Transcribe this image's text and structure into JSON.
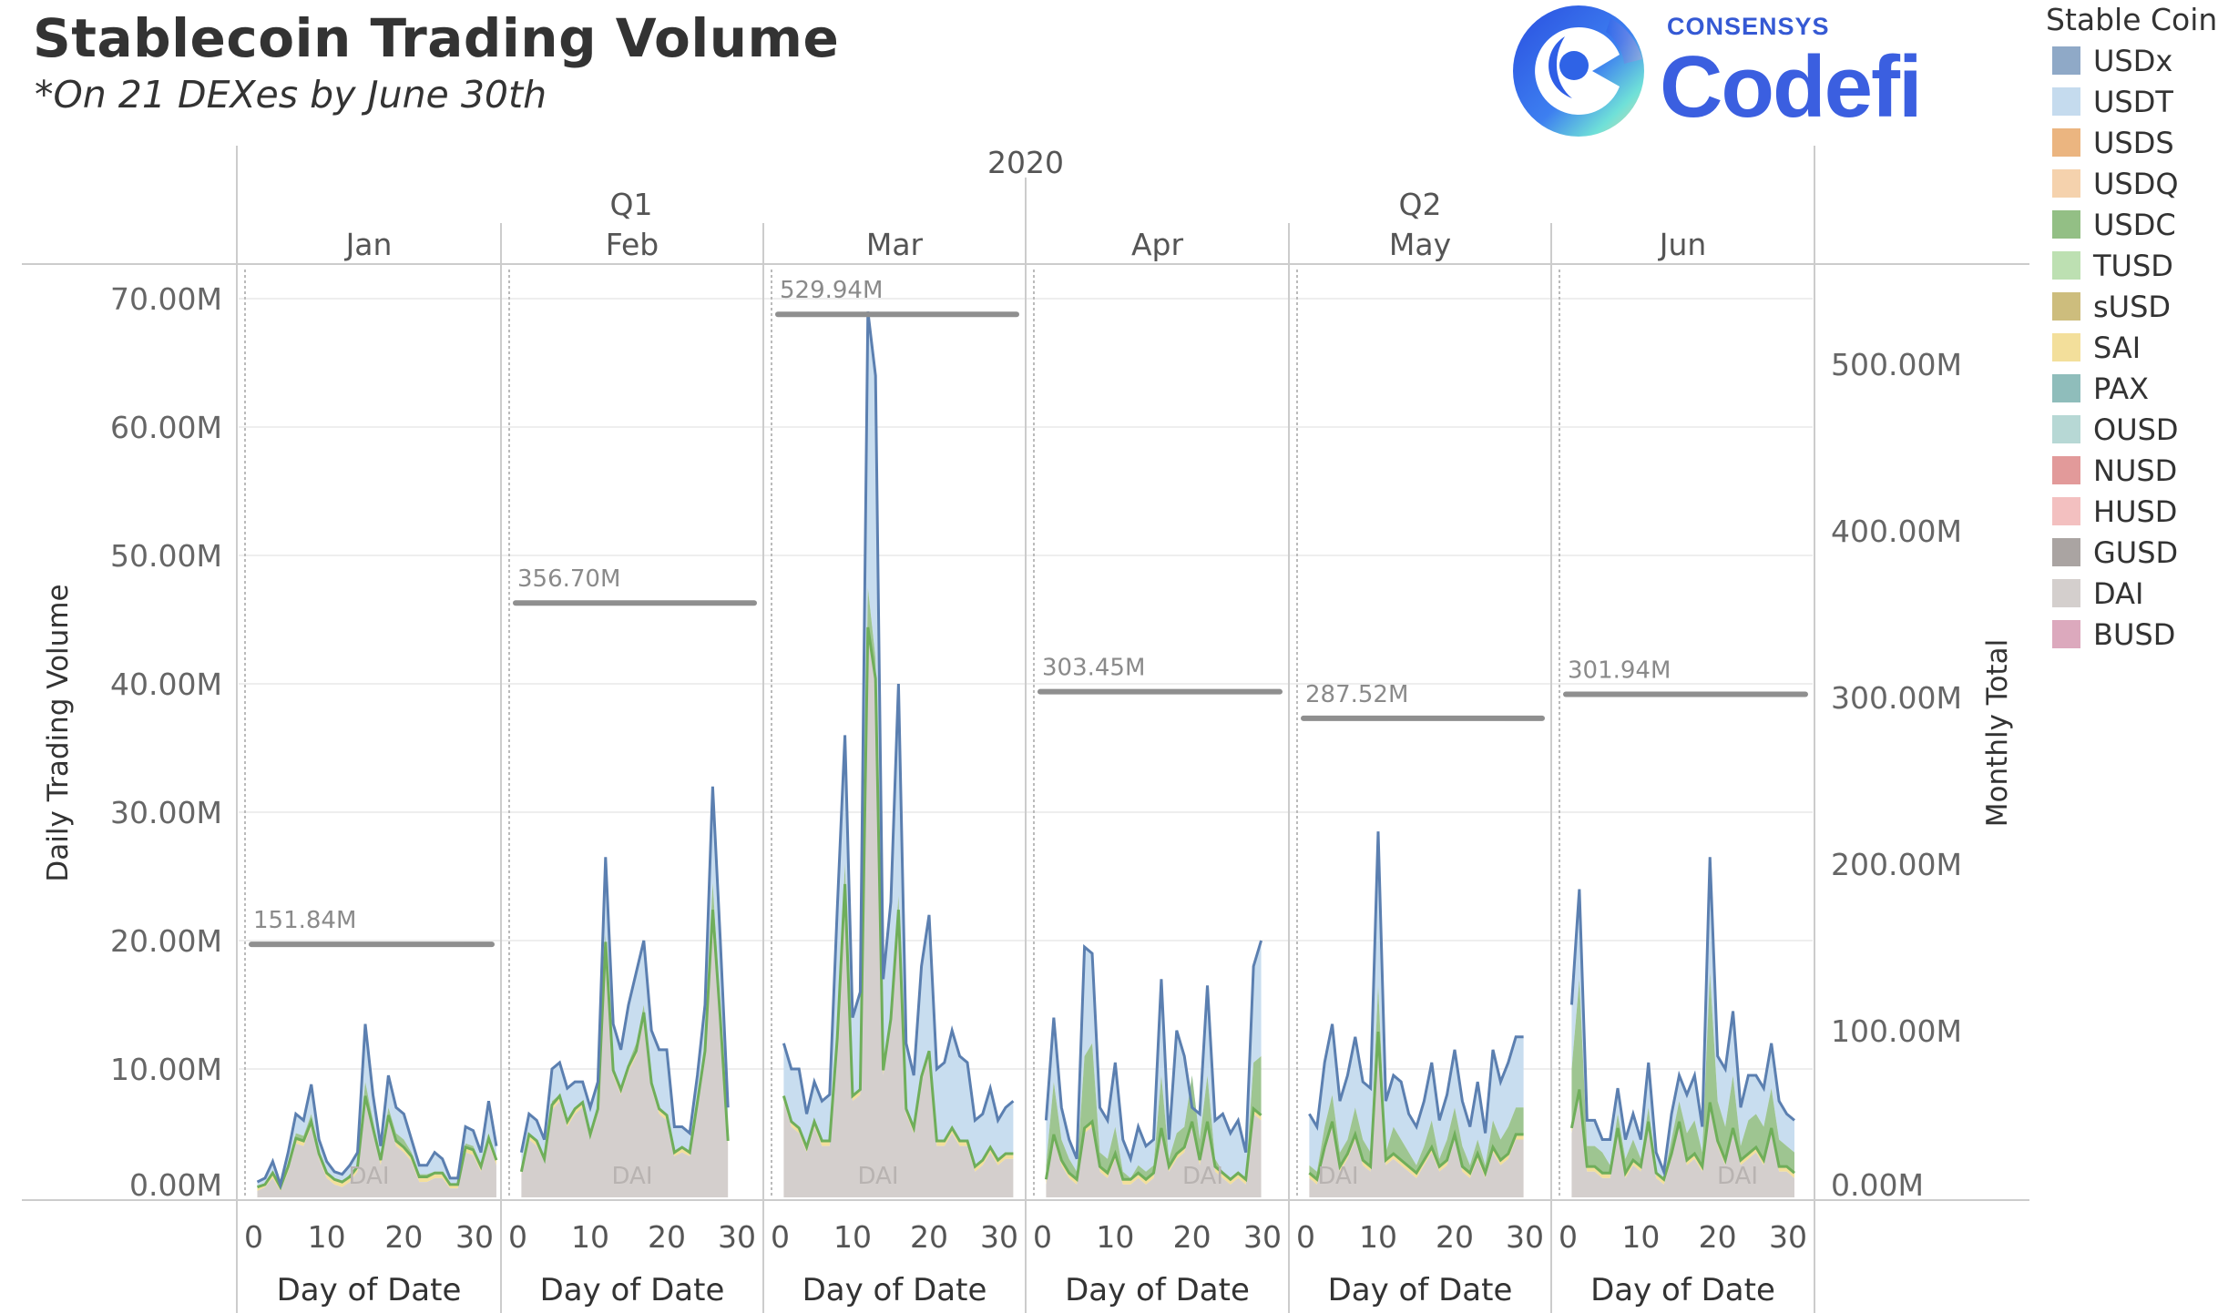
{
  "header": {
    "title": "Stablecoin Trading Volume",
    "subtitle": "*On 21 DEXes by June 30th"
  },
  "logo": {
    "brand_small": "CONSENSYS",
    "brand_big": "Codefi"
  },
  "legend": {
    "title": "Stable Coin",
    "items": [
      {
        "label": "USDx",
        "color": "#8fa9c7"
      },
      {
        "label": "USDT",
        "color": "#c5dbee"
      },
      {
        "label": "USDS",
        "color": "#ebb580"
      },
      {
        "label": "USDQ",
        "color": "#f5d2ad"
      },
      {
        "label": "USDC",
        "color": "#93bf85"
      },
      {
        "label": "TUSD",
        "color": "#bde0b2"
      },
      {
        "label": "sUSD",
        "color": "#cdbd7d"
      },
      {
        "label": "SAI",
        "color": "#f3df9b"
      },
      {
        "label": "PAX",
        "color": "#8fbdbb"
      },
      {
        "label": "OUSD",
        "color": "#b7d8d5"
      },
      {
        "label": "NUSD",
        "color": "#e29a9a"
      },
      {
        "label": "HUSD",
        "color": "#f3c0c0"
      },
      {
        "label": "GUSD",
        "color": "#aaa4a2"
      },
      {
        "label": "DAI",
        "color": "#d4cfcd"
      },
      {
        "label": "BUSD",
        "color": "#dca9bd"
      }
    ]
  },
  "chart_data": {
    "type": "area",
    "title": "Stablecoin Trading Volume",
    "subtitle": "*On 21 DEXes by June 30th",
    "year_label": "2020",
    "quarters": [
      "Q1",
      "Q2"
    ],
    "months": [
      "Jan",
      "Feb",
      "Mar",
      "Apr",
      "May",
      "Jun"
    ],
    "xlabel": "Day of Date",
    "x_ticks": [
      "0",
      "10",
      "20",
      "30"
    ],
    "ylabel_left": "Daily Trading Volume",
    "ylabel_right": "Monthly Total",
    "y_left_ticks": [
      "0.00M",
      "10.00M",
      "20.00M",
      "30.00M",
      "40.00M",
      "50.00M",
      "60.00M",
      "70.00M"
    ],
    "y_left_range": [
      0,
      70
    ],
    "y_right_ticks": [
      "0.00M",
      "100.00M",
      "200.00M",
      "300.00M",
      "400.00M",
      "500.00M"
    ],
    "y_right_range": [
      0,
      540
    ],
    "units": "millions USD",
    "series_label_in_plot": "DAI",
    "monthly_totals": [
      {
        "month": "Jan",
        "value": 151.84,
        "label": "151.84M"
      },
      {
        "month": "Feb",
        "value": 356.7,
        "label": "356.70M"
      },
      {
        "month": "Mar",
        "value": 529.94,
        "label": "529.94M"
      },
      {
        "month": "Apr",
        "value": 303.45,
        "label": "303.45M"
      },
      {
        "month": "May",
        "value": 287.52,
        "label": "287.52M"
      },
      {
        "month": "Jun",
        "value": 301.94,
        "label": "301.94M"
      }
    ],
    "daily": [
      {
        "month": "Jan",
        "total": [
          1.2,
          1.5,
          2.8,
          1.0,
          3.5,
          6.5,
          6.0,
          8.8,
          4.5,
          2.8,
          2.0,
          1.8,
          2.5,
          3.5,
          13.5,
          8.0,
          4.0,
          9.5,
          7.0,
          6.5,
          4.5,
          2.5,
          2.5,
          3.5,
          3.0,
          1.5,
          1.5,
          5.5,
          5.2,
          3.5,
          7.5,
          4.0
        ],
        "usdc_top": [
          0.8,
          1.0,
          2.0,
          0.8,
          2.5,
          5.0,
          4.8,
          6.5,
          3.5,
          2.0,
          1.5,
          1.2,
          1.8,
          2.5,
          9.0,
          6.0,
          3.0,
          7.0,
          5.0,
          4.5,
          3.5,
          1.8,
          1.8,
          2.0,
          2.0,
          1.0,
          1.0,
          4.2,
          4.0,
          2.5,
          5.0,
          3.0
        ],
        "dai": [
          0.5,
          0.8,
          1.5,
          0.5,
          2.0,
          4.2,
          4.0,
          5.5,
          3.0,
          1.5,
          1.0,
          0.8,
          1.2,
          2.0,
          7.5,
          5.0,
          2.5,
          6.0,
          4.0,
          3.5,
          2.8,
          1.2,
          1.2,
          1.5,
          1.5,
          0.7,
          0.7,
          3.5,
          3.3,
          2.0,
          4.2,
          2.5
        ]
      },
      {
        "month": "Feb",
        "total": [
          3.5,
          6.5,
          6.0,
          4.5,
          10.0,
          10.5,
          8.5,
          9.0,
          9.0,
          7.0,
          9.0,
          26.5,
          13.5,
          11.5,
          15.0,
          17.5,
          20.0,
          13.0,
          11.5,
          11.5,
          5.5,
          5.5,
          5.0,
          9.5,
          15.0,
          32.0,
          20.0,
          7.0
        ],
        "usdc_top": [
          2.0,
          5.0,
          4.5,
          3.0,
          7.5,
          8.0,
          6.0,
          7.0,
          7.5,
          5.0,
          7.0,
          20.5,
          10.0,
          8.5,
          10.5,
          12.0,
          15.0,
          9.0,
          7.0,
          6.5,
          3.5,
          4.0,
          3.5,
          7.5,
          12.0,
          24.5,
          15.0,
          4.5
        ],
        "dai": [
          1.8,
          4.5,
          4.0,
          2.8,
          6.8,
          7.5,
          5.5,
          6.5,
          7.0,
          4.5,
          6.5,
          19.5,
          9.5,
          8.0,
          9.8,
          11.0,
          14.0,
          8.5,
          6.5,
          6.0,
          3.2,
          3.5,
          3.2,
          7.0,
          11.0,
          22.0,
          13.5,
          4.0
        ]
      },
      {
        "month": "Mar",
        "total": [
          12.0,
          10.0,
          10.0,
          6.5,
          9.0,
          7.5,
          8.0,
          22.5,
          36.0,
          14.0,
          16.0,
          69.0,
          64.0,
          17.0,
          23.0,
          40.0,
          12.0,
          9.5,
          18.0,
          22.0,
          10.0,
          10.5,
          13.0,
          11.0,
          10.5,
          6.0,
          6.5,
          8.5,
          6.0,
          7.0,
          7.5
        ],
        "usdc_top": [
          8.0,
          6.0,
          5.5,
          4.0,
          6.0,
          4.5,
          4.5,
          13.0,
          26.0,
          8.0,
          8.5,
          47.5,
          42.0,
          10.0,
          14.5,
          23.5,
          7.0,
          5.5,
          9.5,
          11.5,
          4.5,
          4.5,
          5.5,
          4.5,
          4.5,
          2.5,
          3.0,
          4.0,
          3.0,
          3.5,
          3.5
        ],
        "dai": [
          7.5,
          5.5,
          5.0,
          3.5,
          5.5,
          4.0,
          4.0,
          12.0,
          24.0,
          7.5,
          8.0,
          44.0,
          40.0,
          9.5,
          13.5,
          22.0,
          6.5,
          5.0,
          9.0,
          11.0,
          4.0,
          4.0,
          5.0,
          4.0,
          4.0,
          2.0,
          2.5,
          3.5,
          2.5,
          3.0,
          3.0
        ]
      },
      {
        "month": "Apr",
        "total": [
          6.0,
          14.0,
          7.0,
          4.5,
          3.0,
          19.5,
          19.0,
          7.0,
          6.0,
          10.5,
          4.5,
          3.0,
          5.5,
          4.0,
          4.5,
          17.0,
          4.5,
          13.0,
          11.0,
          7.0,
          6.5,
          16.5,
          6.0,
          6.5,
          5.0,
          6.0,
          3.5,
          18.0,
          20.0
        ],
        "usdc_top": [
          2.5,
          9.0,
          4.5,
          3.0,
          2.0,
          11.0,
          12.0,
          3.5,
          3.0,
          5.5,
          2.0,
          1.5,
          2.5,
          2.0,
          2.5,
          9.5,
          3.0,
          5.0,
          5.5,
          9.5,
          4.5,
          9.5,
          3.0,
          2.0,
          1.5,
          2.0,
          1.5,
          10.5,
          11.0
        ],
        "dai": [
          1.0,
          4.5,
          2.5,
          1.5,
          1.0,
          5.0,
          5.5,
          2.0,
          1.5,
          3.0,
          1.0,
          1.0,
          1.5,
          1.0,
          1.5,
          5.0,
          2.0,
          3.0,
          3.5,
          5.5,
          2.5,
          5.5,
          2.0,
          1.5,
          1.0,
          1.5,
          1.0,
          6.5,
          6.0
        ]
      },
      {
        "month": "May",
        "total": [
          6.5,
          5.5,
          10.5,
          13.5,
          7.5,
          9.5,
          12.5,
          9.0,
          8.5,
          28.5,
          7.5,
          9.5,
          9.0,
          6.5,
          5.5,
          7.5,
          10.5,
          6.0,
          8.0,
          11.5,
          7.5,
          5.5,
          9.0,
          5.0,
          11.5,
          9.0,
          10.5,
          12.5,
          12.5
        ],
        "usdc_top": [
          2.5,
          2.0,
          5.5,
          8.0,
          3.5,
          4.5,
          7.0,
          4.5,
          3.5,
          16.5,
          3.5,
          5.5,
          4.5,
          3.5,
          2.5,
          4.0,
          6.0,
          3.0,
          4.5,
          7.0,
          4.0,
          2.5,
          4.5,
          2.5,
          6.0,
          4.5,
          5.5,
          7.0,
          7.0
        ],
        "dai": [
          1.5,
          1.0,
          3.5,
          5.5,
          2.0,
          3.0,
          4.5,
          2.5,
          2.0,
          12.5,
          2.5,
          3.0,
          2.5,
          2.0,
          1.5,
          2.5,
          3.5,
          2.0,
          2.5,
          4.5,
          2.0,
          1.5,
          3.0,
          1.5,
          3.5,
          2.5,
          3.0,
          4.5,
          4.5
        ]
      },
      {
        "month": "Jun",
        "total": [
          15.0,
          24.0,
          6.0,
          6.0,
          4.5,
          4.5,
          8.5,
          4.5,
          6.5,
          4.5,
          10.5,
          3.5,
          2.0,
          6.5,
          9.5,
          8.0,
          9.5,
          5.5,
          26.5,
          11.0,
          10.0,
          14.5,
          7.0,
          9.5,
          9.5,
          8.5,
          12.0,
          7.5,
          6.5,
          6.0
        ],
        "usdc_top": [
          10.0,
          17.0,
          4.0,
          4.0,
          3.5,
          2.5,
          6.5,
          3.0,
          4.5,
          3.0,
          7.0,
          2.0,
          1.5,
          4.5,
          7.5,
          5.0,
          6.0,
          3.5,
          17.5,
          7.5,
          5.5,
          9.5,
          4.0,
          6.0,
          6.5,
          5.5,
          8.5,
          4.5,
          4.0,
          3.5
        ],
        "dai": [
          5.0,
          8.0,
          2.0,
          2.0,
          1.5,
          1.5,
          5.0,
          1.5,
          2.5,
          2.0,
          5.5,
          1.5,
          1.0,
          3.0,
          5.5,
          2.5,
          3.0,
          2.0,
          7.0,
          4.0,
          2.5,
          5.0,
          2.5,
          3.0,
          3.5,
          2.5,
          5.0,
          2.0,
          2.0,
          1.5
        ]
      }
    ]
  }
}
